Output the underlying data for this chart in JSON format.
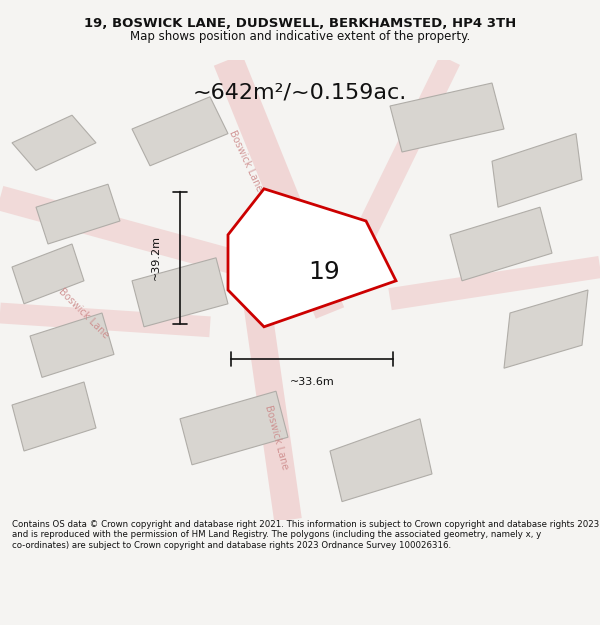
{
  "title_line1": "19, BOSWICK LANE, DUDSWELL, BERKHAMSTED, HP4 3TH",
  "title_line2": "Map shows position and indicative extent of the property.",
  "area_text": "~642m²/~0.159ac.",
  "label_19": "19",
  "dim_vertical": "~39.2m",
  "dim_horizontal": "~33.6m",
  "footer": "Contains OS data © Crown copyright and database right 2021. This information is subject to Crown copyright and database rights 2023 and is reproduced with the permission of HM Land Registry. The polygons (including the associated geometry, namely x, y co-ordinates) are subject to Crown copyright and database rights 2023 Ordnance Survey 100026316.",
  "bg_color": "#f5f4f2",
  "map_bg": "#f0eeeb",
  "road_color": "#e8a0a0",
  "building_color": "#d8d5d0",
  "building_edge": "#b0ada8",
  "plot_color": "#ffffff",
  "plot_edge": "#cc0000",
  "dim_line_color": "#111111",
  "road_label_color": "#cc8888",
  "text_color": "#111111"
}
